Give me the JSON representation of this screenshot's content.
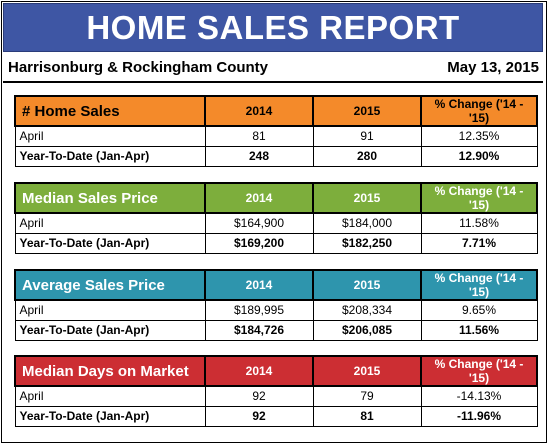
{
  "report": {
    "title": "HOME SALES REPORT",
    "location": "Harrisonburg & Rockingham County",
    "date": "May 13, 2015"
  },
  "columns": {
    "y2014": "2014",
    "y2015": "2015",
    "change": "% Change ('14 - '15)"
  },
  "colors": {
    "banner": "#3e56a4",
    "home_sales": "#f48a2a",
    "median_price": "#7dae3c",
    "average_price": "#2e95ad",
    "days_on_market": "#cc2e33"
  },
  "sections": [
    {
      "name": "# Home Sales",
      "rows": [
        {
          "label": "April",
          "v2014": "81",
          "v2015": "91",
          "change": "12.35%"
        },
        {
          "label": "Year-To-Date (Jan-Apr)",
          "v2014": "248",
          "v2015": "280",
          "change": "12.90%"
        }
      ]
    },
    {
      "name": "Median Sales Price",
      "rows": [
        {
          "label": "April",
          "v2014": "$164,900",
          "v2015": "$184,000",
          "change": "11.58%"
        },
        {
          "label": "Year-To-Date (Jan-Apr)",
          "v2014": "$169,200",
          "v2015": "$182,250",
          "change": "7.71%"
        }
      ]
    },
    {
      "name": "Average Sales Price",
      "rows": [
        {
          "label": "April",
          "v2014": "$189,995",
          "v2015": "$208,334",
          "change": "9.65%"
        },
        {
          "label": "Year-To-Date (Jan-Apr)",
          "v2014": "$184,726",
          "v2015": "$206,085",
          "change": "11.56%"
        }
      ]
    },
    {
      "name": "Median Days on Market",
      "rows": [
        {
          "label": "April",
          "v2014": "92",
          "v2015": "79",
          "change": "-14.13%"
        },
        {
          "label": "Year-To-Date (Jan-Apr)",
          "v2014": "92",
          "v2015": "81",
          "change": "-11.96%"
        }
      ]
    }
  ]
}
